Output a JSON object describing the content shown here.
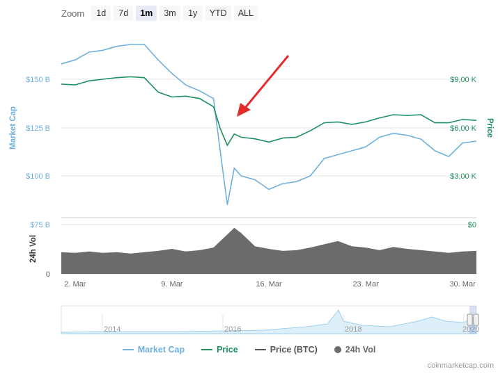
{
  "zoom": {
    "label": "Zoom",
    "buttons": [
      "1d",
      "7d",
      "1m",
      "3m",
      "1y",
      "YTD",
      "ALL"
    ],
    "active": "1m"
  },
  "colors": {
    "market_cap": "#6fb1dc",
    "price": "#1e8f5e",
    "price_btc": "#555555",
    "volume": "#6b6b6b",
    "navigator": "#9fd0ec",
    "arrow": "#e22b2b"
  },
  "legend": {
    "items": [
      "Market Cap",
      "Price",
      "Price (BTC)",
      "24h Vol"
    ]
  },
  "credit": "coinmarketcap.com",
  "chart_data": {
    "type": "line",
    "x_tick_labels": [
      "2. Mar",
      "9. Mar",
      "16. Mar",
      "23. Mar",
      "30. Mar"
    ],
    "x_range": [
      "2020-03-01",
      "2020-03-31"
    ],
    "left_axis": {
      "title": "Market Cap",
      "tick_labels": [
        "$150 B",
        "$125 B",
        "$100 B"
      ]
    },
    "right_axis": {
      "title": "Price",
      "tick_labels": [
        "$9,00 K",
        "$6,00 K",
        "$3,00 K"
      ]
    },
    "volume_axis": {
      "title": "24h Vol",
      "tick_labels": [
        "$75 B",
        "0"
      ],
      "right_tick_labels": [
        "$0"
      ]
    },
    "navigator_tick_labels": [
      "2014",
      "2016",
      "2018",
      "2020"
    ],
    "series": [
      {
        "name": "Market Cap",
        "unit": "B USD",
        "x": [
          1,
          2,
          3,
          4,
          5,
          6,
          7,
          8,
          9,
          10,
          11,
          12,
          12.5,
          13,
          13.5,
          14,
          15,
          16,
          17,
          18,
          19,
          20,
          21,
          22,
          23,
          24,
          25,
          26,
          27,
          28,
          29,
          30,
          31
        ],
        "values": [
          158,
          160,
          164,
          165,
          167,
          168,
          168,
          160,
          153,
          147,
          144,
          140,
          112,
          85,
          104,
          100,
          98,
          93,
          96,
          97,
          100,
          109,
          111,
          113,
          115,
          120,
          122,
          121,
          119,
          113,
          110,
          117,
          118
        ]
      },
      {
        "name": "Price",
        "unit": "K USD",
        "x": [
          1,
          2,
          3,
          4,
          5,
          6,
          7,
          8,
          9,
          10,
          11,
          12,
          12.5,
          13,
          13.5,
          14,
          15,
          16,
          17,
          18,
          19,
          20,
          21,
          22,
          23,
          24,
          25,
          26,
          27,
          28,
          29,
          30,
          31
        ],
        "values": [
          8.7,
          8.65,
          8.9,
          9.0,
          9.1,
          9.15,
          9.1,
          8.2,
          7.9,
          7.95,
          7.8,
          7.3,
          5.9,
          4.9,
          5.6,
          5.4,
          5.3,
          5.1,
          5.35,
          5.4,
          5.8,
          6.3,
          6.35,
          6.2,
          6.35,
          6.6,
          6.8,
          6.75,
          6.8,
          6.3,
          6.3,
          6.5,
          6.45
        ]
      },
      {
        "name": "24h Vol",
        "unit": "B USD",
        "x": [
          1,
          2,
          3,
          4,
          5,
          6,
          7,
          8,
          9,
          10,
          11,
          12,
          13,
          13.5,
          14,
          15,
          16,
          17,
          18,
          19,
          20,
          21,
          22,
          23,
          24,
          25,
          26,
          27,
          28,
          29,
          30,
          31
        ],
        "values": [
          33,
          32,
          34,
          32,
          33,
          31,
          33,
          35,
          38,
          34,
          36,
          40,
          60,
          70,
          62,
          42,
          38,
          35,
          36,
          40,
          45,
          50,
          42,
          40,
          36,
          41,
          38,
          36,
          34,
          32,
          34,
          35
        ]
      }
    ]
  }
}
